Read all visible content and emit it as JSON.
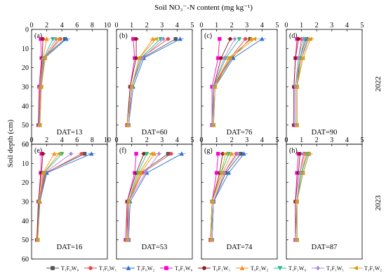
{
  "figure": {
    "top_axis_label": "Soil NO₃⁻-N content (mg kg⁻¹)",
    "y_axis_label": "Soil depth (cm)",
    "row_labels": [
      "2022",
      "2023"
    ]
  },
  "legend": [
    {
      "name": "T₁F₀W₀",
      "color": "#555555",
      "marker": "square"
    },
    {
      "name": "T₁F₀W₁",
      "color": "#e8474a",
      "marker": "circle"
    },
    {
      "name": "T₁F₀W₂",
      "color": "#2a6fd6",
      "marker": "triangle-up"
    },
    {
      "name": "T₀F₁W₀",
      "color": "#ff00cc",
      "marker": "square"
    },
    {
      "name": "T₀F₁W₁",
      "color": "#8b1a1a",
      "marker": "circle"
    },
    {
      "name": "T₀F₁W₂",
      "color": "#ff8c1a",
      "marker": "triangle-up"
    },
    {
      "name": "T₁F₁W₀",
      "color": "#22c088",
      "marker": "triangle-down"
    },
    {
      "name": "T₁F₁W₁",
      "color": "#b084d8",
      "marker": "diamond"
    },
    {
      "name": "T₁F₁W₂",
      "color": "#d4a017",
      "marker": "triangle-left"
    }
  ],
  "chart_data": [
    {
      "type": "line",
      "panel": "(a)",
      "dat": "DAT=13",
      "xlim": [
        0,
        10
      ],
      "xticks": [
        0,
        2,
        4,
        6,
        8,
        10
      ],
      "ylim": [
        0,
        60
      ],
      "yticks": [
        0,
        10,
        20,
        30,
        40,
        50,
        60
      ],
      "depths": [
        5,
        15,
        30,
        50
      ],
      "series": [
        {
          "values": [
            4.4,
            1.5,
            1.1,
            0.9
          ]
        },
        {
          "values": [
            3.8,
            1.6,
            1.2,
            1.0
          ]
        },
        {
          "values": [
            4.6,
            1.7,
            1.2,
            1.0
          ]
        },
        {
          "values": [
            1.2,
            1.3,
            1.0,
            0.9
          ]
        },
        {
          "values": [
            1.5,
            1.4,
            1.1,
            0.9
          ]
        },
        {
          "values": [
            2.0,
            1.5,
            1.1,
            1.0
          ]
        },
        {
          "values": [
            2.8,
            1.6,
            1.2,
            1.0
          ]
        },
        {
          "values": [
            3.2,
            1.7,
            1.2,
            1.0
          ]
        },
        {
          "values": [
            3.5,
            1.8,
            1.3,
            1.1
          ]
        }
      ]
    },
    {
      "type": "line",
      "panel": "(b)",
      "dat": "DAT=60",
      "xlim": [
        0,
        5
      ],
      "xticks": [
        0,
        1,
        2,
        3,
        4,
        5
      ],
      "ylim": [
        0,
        60
      ],
      "yticks": [
        0,
        10,
        20,
        30,
        40,
        50,
        60
      ],
      "depths": [
        5,
        15,
        30,
        50
      ],
      "series": [
        {
          "values": [
            3.9,
            1.7,
            1.0,
            0.8
          ]
        },
        {
          "values": [
            3.4,
            1.6,
            1.0,
            0.8
          ]
        },
        {
          "values": [
            4.2,
            1.8,
            1.1,
            0.8
          ]
        },
        {
          "values": [
            1.1,
            1.2,
            0.9,
            0.7
          ]
        },
        {
          "values": [
            1.3,
            1.3,
            0.9,
            0.7
          ]
        },
        {
          "values": [
            2.4,
            1.5,
            1.0,
            0.8
          ]
        },
        {
          "values": [
            2.9,
            1.6,
            1.0,
            0.8
          ]
        },
        {
          "values": [
            3.1,
            1.7,
            1.0,
            0.8
          ]
        },
        {
          "values": [
            2.6,
            1.5,
            1.0,
            0.7
          ]
        }
      ]
    },
    {
      "type": "line",
      "panel": "(c)",
      "dat": "DAT=76",
      "xlim": [
        0,
        5
      ],
      "xticks": [
        0,
        1,
        2,
        3,
        4,
        5
      ],
      "ylim": [
        0,
        60
      ],
      "yticks": [
        0,
        10,
        20,
        30,
        40,
        50,
        60
      ],
      "depths": [
        5,
        15,
        30,
        50
      ],
      "series": [
        {
          "values": [
            3.2,
            2.0,
            0.8,
            0.8
          ]
        },
        {
          "values": [
            2.9,
            1.9,
            0.8,
            0.8
          ]
        },
        {
          "values": [
            4.0,
            2.1,
            0.9,
            0.8
          ]
        },
        {
          "values": [
            1.2,
            1.1,
            0.7,
            0.7
          ]
        },
        {
          "values": [
            1.9,
            1.3,
            0.8,
            0.7
          ]
        },
        {
          "values": [
            3.3,
            1.8,
            0.8,
            0.8
          ]
        },
        {
          "values": [
            2.5,
            1.6,
            0.8,
            0.8
          ]
        },
        {
          "values": [
            2.2,
            1.5,
            0.8,
            0.7
          ]
        },
        {
          "values": [
            3.5,
            1.9,
            0.9,
            0.8
          ]
        }
      ]
    },
    {
      "type": "line",
      "panel": "(d)",
      "dat": "DAT=90",
      "xlim": [
        0,
        5
      ],
      "xticks": [
        0,
        1,
        2,
        3,
        4,
        5
      ],
      "ylim": [
        0,
        60
      ],
      "yticks": [
        0,
        10,
        20,
        30,
        40,
        50,
        60
      ],
      "depths": [
        5,
        15,
        30,
        50
      ],
      "series": [
        {
          "values": [
            1.3,
            0.9,
            0.7,
            0.7
          ]
        },
        {
          "values": [
            1.0,
            0.8,
            0.6,
            0.6
          ]
        },
        {
          "values": [
            1.4,
            1.0,
            0.7,
            0.7
          ]
        },
        {
          "values": [
            0.7,
            0.6,
            0.5,
            0.5
          ]
        },
        {
          "values": [
            0.8,
            0.6,
            0.5,
            0.5
          ]
        },
        {
          "values": [
            1.5,
            1.0,
            0.7,
            0.7
          ]
        },
        {
          "values": [
            1.2,
            0.9,
            0.6,
            0.6
          ]
        },
        {
          "values": [
            1.1,
            0.8,
            0.6,
            0.6
          ]
        },
        {
          "values": [
            1.6,
            1.1,
            0.7,
            0.7
          ]
        }
      ]
    },
    {
      "type": "line",
      "panel": "(e)",
      "dat": "DAT=16",
      "xlim": [
        0,
        10
      ],
      "xticks": [
        0,
        2,
        4,
        6,
        8,
        10
      ],
      "ylim": [
        0,
        60
      ],
      "yticks": [
        0,
        10,
        20,
        30,
        40,
        50,
        60
      ],
      "depths": [
        5,
        15,
        30,
        50
      ],
      "series": [
        {
          "values": [
            7.0,
            1.8,
            1.0,
            0.8
          ]
        },
        {
          "values": [
            6.6,
            1.9,
            1.0,
            0.8
          ]
        },
        {
          "values": [
            7.9,
            2.0,
            1.1,
            0.8
          ]
        },
        {
          "values": [
            1.3,
            1.2,
            0.9,
            0.7
          ]
        },
        {
          "values": [
            1.5,
            1.3,
            0.9,
            0.7
          ]
        },
        {
          "values": [
            3.0,
            1.5,
            1.0,
            0.8
          ]
        },
        {
          "values": [
            4.0,
            1.6,
            1.0,
            0.8
          ]
        },
        {
          "values": [
            5.2,
            1.7,
            1.0,
            0.8
          ]
        },
        {
          "values": [
            3.6,
            1.6,
            1.0,
            0.8
          ]
        }
      ]
    },
    {
      "type": "line",
      "panel": "(f)",
      "dat": "DAT=53",
      "xlim": [
        0,
        5
      ],
      "xticks": [
        0,
        1,
        2,
        3,
        4,
        5
      ],
      "ylim": [
        0,
        60
      ],
      "yticks": [
        0,
        10,
        20,
        30,
        40,
        50,
        60
      ],
      "depths": [
        5,
        15,
        30,
        50
      ],
      "series": [
        {
          "values": [
            3.4,
            1.6,
            0.8,
            0.8
          ]
        },
        {
          "values": [
            3.6,
            1.7,
            0.8,
            0.8
          ]
        },
        {
          "values": [
            4.3,
            2.0,
            0.9,
            0.8
          ]
        },
        {
          "values": [
            1.3,
            1.2,
            0.7,
            0.6
          ]
        },
        {
          "values": [
            1.8,
            1.3,
            0.7,
            0.7
          ]
        },
        {
          "values": [
            2.5,
            1.6,
            0.8,
            0.7
          ]
        },
        {
          "values": [
            2.0,
            1.4,
            0.8,
            0.7
          ]
        },
        {
          "values": [
            2.8,
            1.9,
            0.8,
            0.8
          ]
        },
        {
          "values": [
            2.3,
            1.5,
            0.8,
            0.7
          ]
        }
      ]
    },
    {
      "type": "line",
      "panel": "(g)",
      "dat": "DAT=74",
      "xlim": [
        0,
        5
      ],
      "xticks": [
        0,
        1,
        2,
        3,
        4,
        5
      ],
      "ylim": [
        0,
        60
      ],
      "yticks": [
        0,
        10,
        20,
        30,
        40,
        50,
        60
      ],
      "depths": [
        5,
        15,
        30,
        50
      ],
      "series": [
        {
          "values": [
            2.6,
            1.6,
            0.8,
            0.7
          ]
        },
        {
          "values": [
            2.3,
            1.5,
            0.8,
            0.7
          ]
        },
        {
          "values": [
            2.8,
            1.8,
            0.8,
            0.7
          ]
        },
        {
          "values": [
            1.1,
            1.0,
            0.7,
            0.6
          ]
        },
        {
          "values": [
            1.4,
            1.2,
            0.7,
            0.6
          ]
        },
        {
          "values": [
            2.0,
            1.4,
            0.7,
            0.7
          ]
        },
        {
          "values": [
            1.8,
            1.3,
            0.7,
            0.7
          ]
        },
        {
          "values": [
            2.4,
            1.5,
            0.8,
            0.7
          ]
        },
        {
          "values": [
            1.6,
            1.3,
            0.7,
            0.6
          ]
        }
      ]
    },
    {
      "type": "line",
      "panel": "(h)",
      "dat": "DAT=87",
      "xlim": [
        0,
        5
      ],
      "xticks": [
        0,
        1,
        2,
        3,
        4,
        5
      ],
      "ylim": [
        0,
        60
      ],
      "yticks": [
        0,
        10,
        20,
        30,
        40,
        50,
        60
      ],
      "depths": [
        5,
        15,
        30,
        50
      ],
      "series": [
        {
          "values": [
            1.4,
            1.0,
            0.7,
            0.7
          ]
        },
        {
          "values": [
            1.2,
            0.9,
            0.7,
            0.6
          ]
        },
        {
          "values": [
            1.5,
            1.1,
            0.7,
            0.7
          ]
        },
        {
          "values": [
            0.8,
            0.7,
            0.6,
            0.6
          ]
        },
        {
          "values": [
            0.9,
            0.8,
            0.6,
            0.6
          ]
        },
        {
          "values": [
            1.3,
            1.0,
            0.7,
            0.7
          ]
        },
        {
          "values": [
            1.4,
            1.0,
            0.7,
            0.7
          ]
        },
        {
          "values": [
            1.1,
            0.9,
            0.7,
            0.6
          ]
        },
        {
          "values": [
            1.5,
            1.1,
            0.7,
            0.7
          ]
        }
      ]
    }
  ]
}
